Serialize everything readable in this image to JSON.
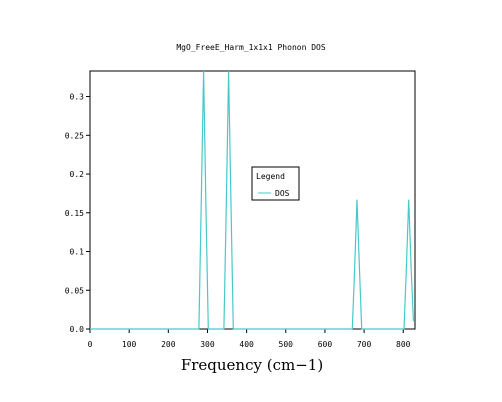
{
  "chart_data": {
    "type": "line",
    "title": "MgO_FreeE_Harm_1x1x1 Phonon DOS",
    "xlabel": "Frequency (cm−1)",
    "ylabel": "",
    "xlim": [
      0,
      830
    ],
    "ylim": [
      0,
      0.333
    ],
    "xticks": [
      "0",
      "100",
      "200",
      "300",
      "400",
      "500",
      "600",
      "700",
      "800"
    ],
    "yticks": [
      "0.0",
      "0.05",
      "0.1",
      "0.15",
      "0.2",
      "0.25",
      "0.3"
    ],
    "grid": false,
    "legend": {
      "title": "Legend",
      "placement": "center-right"
    },
    "series": [
      {
        "name": "DOS",
        "color": "#48c9c9",
        "x": [
          0,
          278,
          284,
          290,
          296,
          302,
          342,
          348,
          354,
          360,
          366,
          670,
          676,
          682,
          688,
          694,
          802,
          808,
          814,
          820,
          826
        ],
        "y": [
          0,
          0,
          0.16,
          0.333,
          0.16,
          0,
          0,
          0.16,
          0.333,
          0.16,
          0,
          0,
          0.08,
          0.167,
          0.08,
          0,
          0,
          0.08,
          0.167,
          0.08,
          0.01
        ]
      }
    ]
  }
}
